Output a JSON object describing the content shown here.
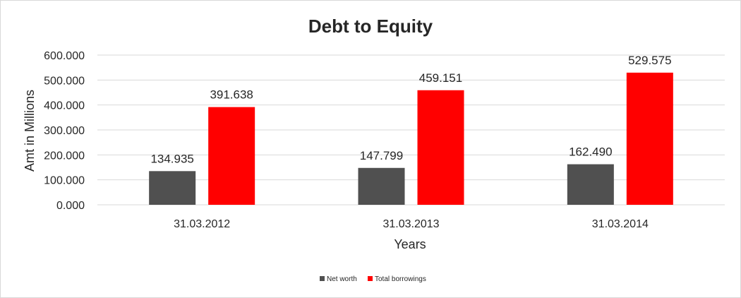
{
  "chart_data": {
    "type": "bar",
    "title": "Debt to Equity",
    "xlabel": "Years",
    "ylabel": "Amt in Millions",
    "categories": [
      "31.03.2012",
      "31.03.2013",
      "31.03.2014"
    ],
    "series": [
      {
        "name": "Net worth",
        "values": [
          134.935,
          147.799,
          162.49
        ],
        "labels": [
          "134.935",
          "147.799",
          "162.490"
        ],
        "color": "#505050"
      },
      {
        "name": "Total borrowings",
        "values": [
          391.638,
          459.151,
          529.575
        ],
        "labels": [
          "391.638",
          "459.151",
          "529.575"
        ],
        "color": "#ff0000"
      }
    ],
    "ylim": [
      0,
      600
    ],
    "yticks": [
      0,
      100,
      200,
      300,
      400,
      500,
      600
    ],
    "ytick_labels": [
      "0.000",
      "100.000",
      "200.000",
      "300.000",
      "400.000",
      "500.000",
      "600.000"
    ],
    "grid": true,
    "legend_position": "bottom"
  }
}
